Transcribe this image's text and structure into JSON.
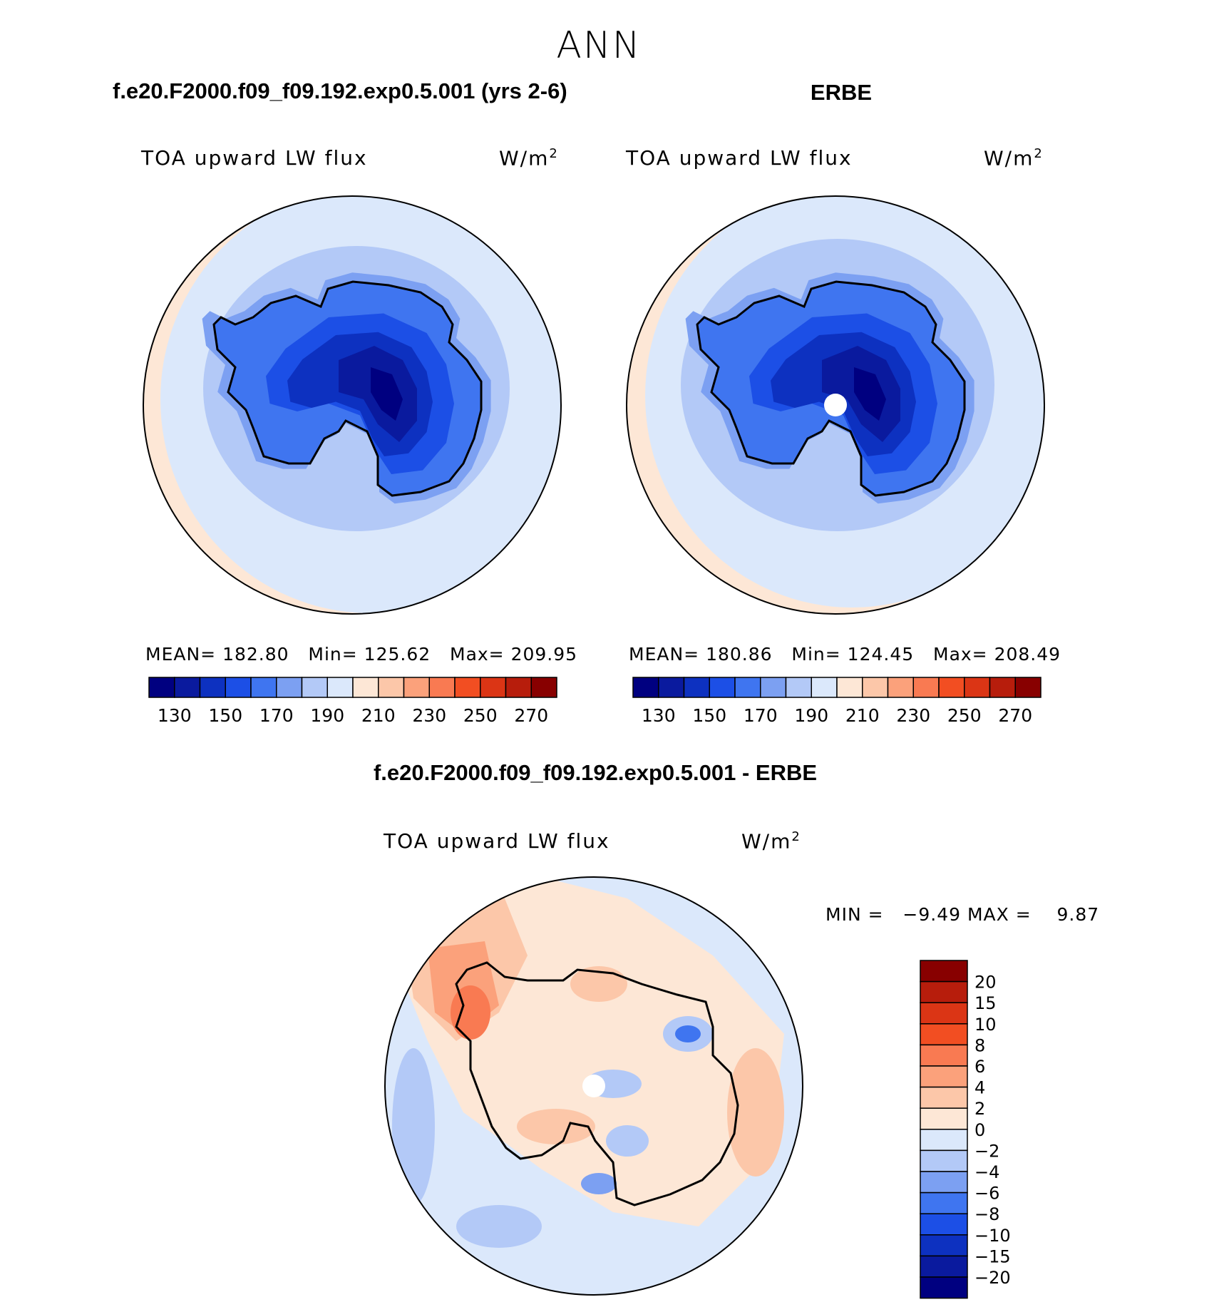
{
  "page_title": "ANN",
  "panels": [
    {
      "header": "f.e20.F2000.f09_f09.192.exp0.5.001 (yrs 2-6)",
      "variable": "TOA upward LW flux",
      "units": "W/m",
      "units_sup": "2",
      "stats": {
        "mean_label": "MEAN=",
        "mean": "182.80",
        "min_label": "Min=",
        "min": "125.62",
        "max_label": "Max=",
        "max": "209.95"
      },
      "pole_hole": false
    },
    {
      "header": "ERBE",
      "variable": "TOA upward LW flux",
      "units": "W/m",
      "units_sup": "2",
      "stats": {
        "mean_label": "MEAN=",
        "mean": "180.86",
        "min_label": "Min=",
        "min": "124.45",
        "max_label": "Max=",
        "max": "208.49"
      },
      "pole_hole": true
    }
  ],
  "abs_colorbar": {
    "colors": [
      "#000080",
      "#0a1a9e",
      "#0d31c0",
      "#1c4fe6",
      "#3f75f0",
      "#7ca0f2",
      "#b3c9f7",
      "#dbe8fb",
      "#fde7d6",
      "#fcc7a9",
      "#fba17b",
      "#f97a52",
      "#f24e22",
      "#db3515",
      "#b71d0c",
      "#880000"
    ],
    "labels": [
      "130",
      "150",
      "170",
      "190",
      "210",
      "230",
      "250",
      "270"
    ]
  },
  "diff_panel": {
    "header": "f.e20.F2000.f09_f09.192.exp0.5.001 - ERBE",
    "variable": "TOA upward LW flux",
    "units": "W/m",
    "units_sup": "2",
    "minmax": {
      "min_label": "MIN =",
      "min": "−9.49",
      "max_label": "MAX =",
      "max": "9.87"
    }
  },
  "diff_colorbar": {
    "colors": [
      "#000080",
      "#0a1a9e",
      "#0d31c0",
      "#1c4fe6",
      "#3f75f0",
      "#7ca0f2",
      "#b3c9f7",
      "#dbe8fb",
      "#fde7d6",
      "#fcc7a9",
      "#fba17b",
      "#f97a52",
      "#f24e22",
      "#db3515",
      "#b71d0c",
      "#880000"
    ],
    "labels": [
      "20",
      "15",
      "10",
      "8",
      "6",
      "4",
      "2",
      "0",
      "−2",
      "−4",
      "−6",
      "−8",
      "−10",
      "−15",
      "−20"
    ]
  }
}
